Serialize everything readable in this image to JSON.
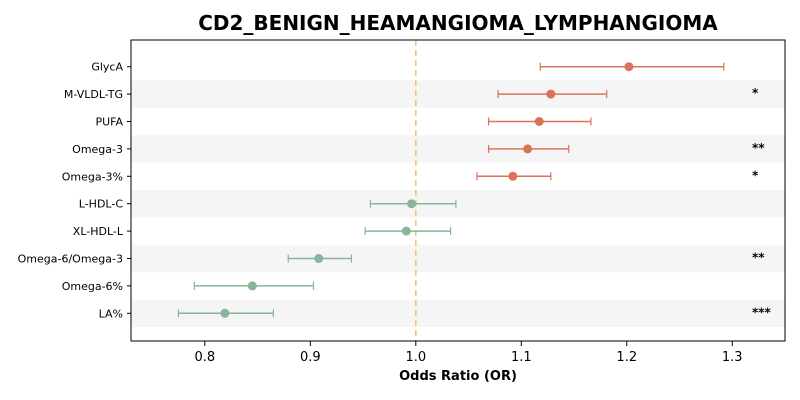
{
  "chart_data": {
    "type": "forest",
    "title": "CD2_BENIGN_HEAMANGIOMA_LYMPHANGIOMA",
    "xlabel": "Odds Ratio (OR)",
    "ylabel": "",
    "xlim": [
      0.73,
      1.35
    ],
    "xticks": [
      0.8,
      0.9,
      1.0,
      1.1,
      1.2,
      1.3
    ],
    "xtick_labels": [
      "0.8",
      "0.9",
      "1.0",
      "1.1",
      "1.2",
      "1.3"
    ],
    "reference_line": 1.0,
    "reference_color": "#f5c26b",
    "colors": {
      "positive": "#d9735a",
      "negative": "#86b59a",
      "band": "#f5f5f5"
    },
    "rows": [
      {
        "label": "GlycA",
        "or": 1.202,
        "lo": 1.118,
        "hi": 1.292,
        "sig": ""
      },
      {
        "label": "M-VLDL-TG",
        "or": 1.128,
        "lo": 1.078,
        "hi": 1.181,
        "sig": "*"
      },
      {
        "label": "PUFA",
        "or": 1.117,
        "lo": 1.069,
        "hi": 1.166,
        "sig": ""
      },
      {
        "label": "Omega-3",
        "or": 1.106,
        "lo": 1.069,
        "hi": 1.145,
        "sig": "**"
      },
      {
        "label": "Omega-3%",
        "or": 1.092,
        "lo": 1.058,
        "hi": 1.128,
        "sig": "*"
      },
      {
        "label": "L-HDL-C",
        "or": 0.996,
        "lo": 0.957,
        "hi": 1.038,
        "sig": ""
      },
      {
        "label": "XL-HDL-L",
        "or": 0.991,
        "lo": 0.952,
        "hi": 1.033,
        "sig": ""
      },
      {
        "label": "Omega-6/Omega-3",
        "or": 0.908,
        "lo": 0.879,
        "hi": 0.939,
        "sig": "**"
      },
      {
        "label": "Omega-6%",
        "or": 0.845,
        "lo": 0.79,
        "hi": 0.903,
        "sig": ""
      },
      {
        "label": "LA%",
        "or": 0.819,
        "lo": 0.775,
        "hi": 0.865,
        "sig": "***"
      }
    ]
  }
}
